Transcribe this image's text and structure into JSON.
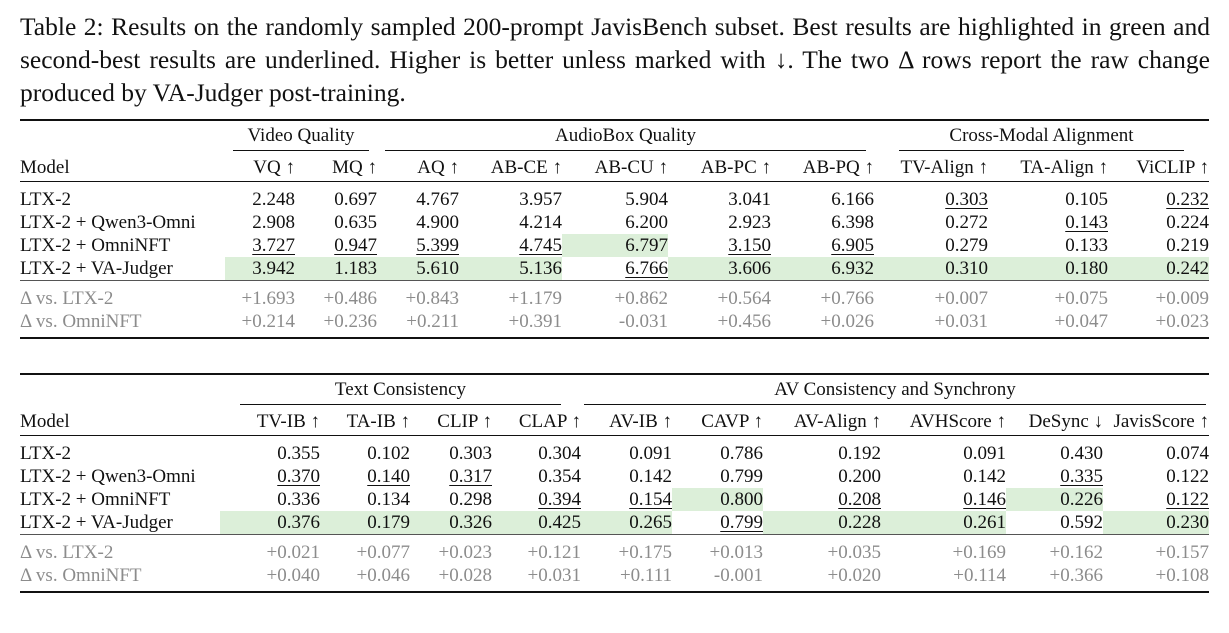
{
  "caption": "Table 2: Results on the randomly sampled 200-prompt JavisBench subset. Best results are highlighted in green and second-best results are underlined. Higher is better unless marked with ↓. The two Δ rows report the raw change produced by VA-Judger post-training.",
  "table1": {
    "groups": [
      "Video Quality",
      "AudioBox Quality",
      "Cross-Modal Alignment"
    ],
    "columns": [
      "Model",
      "VQ ↑",
      "MQ ↑",
      "AQ ↑",
      "AB-CE ↑",
      "AB-CU ↑",
      "AB-PC ↑",
      "AB-PQ ↑",
      "TV-Align ↑",
      "TA-Align ↑",
      "ViCLIP ↑"
    ],
    "rows": [
      {
        "model": "LTX-2",
        "values": [
          "2.248",
          "0.697",
          "4.767",
          "3.957",
          "5.904",
          "3.041",
          "6.166",
          "0.303",
          "0.105",
          "0.232"
        ]
      },
      {
        "model": "LTX-2 + Qwen3-Omni",
        "values": [
          "2.908",
          "0.635",
          "4.900",
          "4.214",
          "6.200",
          "2.923",
          "6.398",
          "0.272",
          "0.143",
          "0.224"
        ]
      },
      {
        "model": "LTX-2 + OmniNFT",
        "values": [
          "3.727",
          "0.947",
          "5.399",
          "4.745",
          "6.797",
          "3.150",
          "6.905",
          "0.279",
          "0.133",
          "0.219"
        ]
      },
      {
        "model": "LTX-2 + VA-Judger",
        "values": [
          "3.942",
          "1.183",
          "5.610",
          "5.136",
          "6.766",
          "3.606",
          "6.932",
          "0.310",
          "0.180",
          "0.242"
        ]
      }
    ],
    "deltas": [
      {
        "model": "Δ vs. LTX-2",
        "values": [
          "+1.693",
          "+0.486",
          "+0.843",
          "+1.179",
          "+0.862",
          "+0.564",
          "+0.766",
          "+0.007",
          "+0.075",
          "+0.009"
        ]
      },
      {
        "model": "Δ vs. OmniNFT",
        "values": [
          "+0.214",
          "+0.236",
          "+0.211",
          "+0.391",
          "-0.031",
          "+0.456",
          "+0.026",
          "+0.031",
          "+0.047",
          "+0.023"
        ]
      }
    ]
  },
  "table2": {
    "groups": [
      "Text Consistency",
      "AV Consistency and Synchrony"
    ],
    "columns": [
      "Model",
      "TV-IB ↑",
      "TA-IB ↑",
      "CLIP ↑",
      "CLAP ↑",
      "AV-IB ↑",
      "CAVP ↑",
      "AV-Align ↑",
      "AVHScore ↑",
      "DeSync ↓",
      "JavisScore ↑"
    ],
    "rows": [
      {
        "model": "LTX-2",
        "values": [
          "0.355",
          "0.102",
          "0.303",
          "0.304",
          "0.091",
          "0.786",
          "0.192",
          "0.091",
          "0.430",
          "0.074"
        ]
      },
      {
        "model": "LTX-2 + Qwen3-Omni",
        "values": [
          "0.370",
          "0.140",
          "0.317",
          "0.354",
          "0.142",
          "0.799",
          "0.200",
          "0.142",
          "0.335",
          "0.122"
        ]
      },
      {
        "model": "LTX-2 + OmniNFT",
        "values": [
          "0.336",
          "0.134",
          "0.298",
          "0.394",
          "0.154",
          "0.800",
          "0.208",
          "0.146",
          "0.226",
          "0.122"
        ]
      },
      {
        "model": "LTX-2 + VA-Judger",
        "values": [
          "0.376",
          "0.179",
          "0.326",
          "0.425",
          "0.265",
          "0.799",
          "0.228",
          "0.261",
          "0.592",
          "0.230"
        ]
      }
    ],
    "deltas": [
      {
        "model": "Δ vs. LTX-2",
        "values": [
          "+0.021",
          "+0.077",
          "+0.023",
          "+0.121",
          "+0.175",
          "+0.013",
          "+0.035",
          "+0.169",
          "+0.162",
          "+0.157"
        ]
      },
      {
        "model": "Δ vs. OmniNFT",
        "values": [
          "+0.040",
          "+0.046",
          "+0.028",
          "+0.031",
          "+0.111",
          "-0.001",
          "+0.020",
          "+0.114",
          "+0.366",
          "+0.108"
        ]
      }
    ]
  }
}
